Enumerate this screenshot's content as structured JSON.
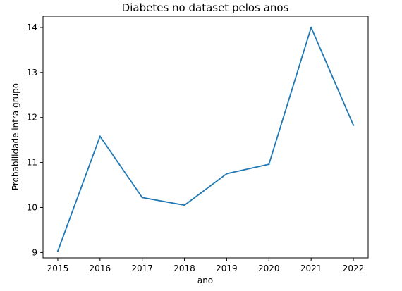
{
  "chart_data": {
    "type": "line",
    "title": "Diabetes no dataset pelos anos",
    "xlabel": "ano",
    "ylabel": "Probabilidade intra grupo",
    "x": [
      2015,
      2016,
      2017,
      2018,
      2019,
      2020,
      2021,
      2022
    ],
    "series": [
      {
        "values": [
          9.03,
          11.58,
          10.22,
          10.05,
          10.75,
          10.96,
          14.0,
          11.83
        ],
        "color": "#1f77b4"
      }
    ],
    "xlim": [
      2014.65,
      2022.35
    ],
    "ylim": [
      8.88,
      14.25
    ],
    "xticks": [
      "2015",
      "2016",
      "2017",
      "2018",
      "2019",
      "2020",
      "2021",
      "2022"
    ],
    "yticks": [
      "9",
      "10",
      "11",
      "12",
      "13",
      "14"
    ],
    "ytick_values": [
      9,
      10,
      11,
      12,
      13,
      14
    ],
    "xtick_values": [
      2015,
      2016,
      2017,
      2018,
      2019,
      2020,
      2021,
      2022
    ],
    "grid": false,
    "legend": "none"
  }
}
